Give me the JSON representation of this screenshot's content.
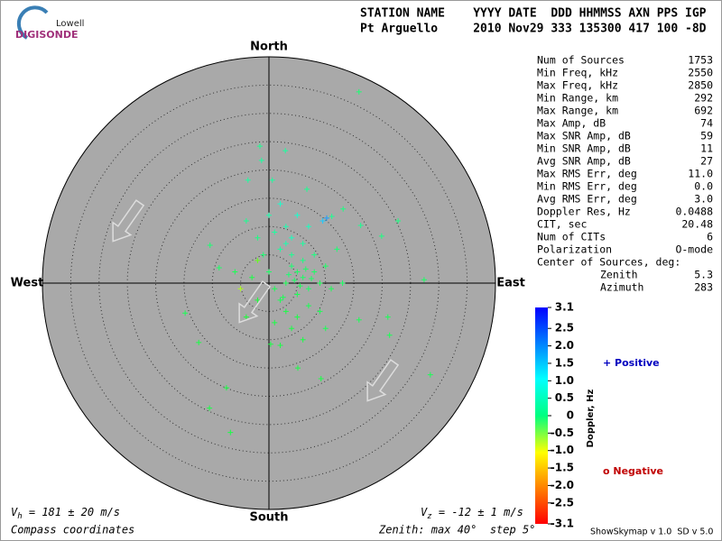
{
  "logo": {
    "top": "Lowell",
    "bottom": "DIGISONDE"
  },
  "header": {
    "line1": "STATION NAME    YYYY DATE  DDD HHMMSS AXN PPS IGP",
    "line2": "Pt Arguello     2010 Nov29 333 135300 417 100 -8D"
  },
  "chart_data": {
    "type": "skymap",
    "compass": {
      "north": "North",
      "south": "South",
      "west": "West",
      "east": "East"
    },
    "zenith_max": 40,
    "zenith_step": 5,
    "points": {
      "east": [
        5,
        4,
        6,
        3,
        7,
        5,
        4,
        3,
        4,
        2,
        6,
        8,
        9,
        2,
        3,
        5,
        7,
        1,
        0,
        -1,
        1,
        3,
        6,
        8,
        10,
        11,
        9,
        4,
        1,
        -2,
        -3,
        -2,
        0,
        5,
        2,
        -4,
        7,
        12,
        13,
        10,
        6,
        2,
        -4,
        -6,
        -5,
        -2,
        4.5,
        5.5,
        3.5,
        6.5,
        2.5,
        7.5,
        15.9,
        -1.6,
        2.9,
        -1.3,
        13.1,
        27.4,
        28.5,
        -6.8,
        -10.5,
        21.3,
        -12.4,
        -7.5,
        15.9,
        -14.8,
        -8.8,
        -10.4,
        19.9,
        16.2,
        22.8,
        21,
        5.1,
        9.2,
        0.3,
        -3.7,
        0.6,
        6.7,
        11.1,
        10.2,
        9.5
      ],
      "north": [
        2,
        3,
        1,
        0,
        -1,
        -2,
        5,
        7,
        8,
        6,
        4,
        2,
        0,
        -3,
        -5,
        -6,
        -4,
        -1,
        2,
        5,
        9,
        10,
        7,
        5,
        3,
        -1,
        -5,
        -8,
        -7,
        -3,
        1,
        8,
        12,
        12,
        14,
        11,
        10,
        6,
        0,
        -8,
        -10,
        -11,
        -6,
        2,
        -1,
        4,
        0.5,
        -0.5,
        1.5,
        2.5,
        -2.5,
        0.8,
        33.8,
        24.2,
        23.4,
        21.7,
        13.1,
        0.6,
        -16.2,
        -26.4,
        -22.1,
        -9.2,
        -10.5,
        -18.5,
        -6.5,
        -5.3,
        2.7,
        6.7,
        8.3,
        10.2,
        11,
        -6,
        -15,
        -16.9,
        -10.8,
        18.2,
        18.2,
        16.6,
        11.8,
        11.5,
        11
      ],
      "doppler": [
        0.5,
        0.6,
        0.5,
        0.4,
        0.5,
        0.4,
        0.8,
        1.0,
        1.1,
        0.9,
        0.7,
        0.5,
        0.4,
        0.4,
        0.3,
        0.3,
        0.4,
        0.4,
        0.5,
        0.6,
        0.9,
        1.0,
        0.9,
        0.7,
        0.5,
        0.4,
        0.4,
        0.3,
        0.3,
        0.2,
        0.3,
        0.7,
        1.0,
        1.2,
        1.2,
        0.8,
        1.1,
        0.6,
        0.5,
        0.4,
        0.3,
        0.3,
        0.2,
        0.4,
        -1.0,
        -0.5,
        0.5,
        0.4,
        0.6,
        0.5,
        0.4,
        0.5,
        0.6,
        0.8,
        0.9,
        0.9,
        0.7,
        0.5,
        0.4,
        0.3,
        0.3,
        0.4,
        0.3,
        0.3,
        0.4,
        0.4,
        0.5,
        0.6,
        0.7,
        0.8,
        0.7,
        0.4,
        0.3,
        0.3,
        0.3,
        0.9,
        0.9,
        0.8,
        0.8,
        2.2,
        1.9
      ]
    },
    "colorbar": {
      "label": "Doppler, Hz",
      "lim": [
        -3.1,
        3.1
      ],
      "ticks": [
        3.1,
        2.5,
        {
          "value": 2,
          "label": "2.0"
        },
        1.5,
        {
          "value": 1,
          "label": "1.0"
        },
        0.5,
        0,
        -0.5,
        {
          "value": -1,
          "label": "-1.0"
        },
        -1.5,
        {
          "value": -2,
          "label": "-2.0"
        },
        -2.5,
        -3.1
      ]
    },
    "legend": {
      "positive": "+ Positive",
      "negative": "o Negative"
    }
  },
  "stats": [
    [
      "Num of Sources",
      "1753"
    ],
    [
      "Min Freq, kHz",
      "2550"
    ],
    [
      "Max Freq, kHz",
      "2850"
    ],
    [
      "Min Range, km",
      "292"
    ],
    [
      "Max Range, km",
      "692"
    ],
    [
      "Max Amp, dB",
      "74"
    ],
    [
      "Max SNR Amp, dB",
      "59"
    ],
    [
      "Min SNR Amp, dB",
      "11"
    ],
    [
      "Avg SNR Amp, dB",
      "27"
    ],
    [
      "Max RMS Err, deg",
      "11.0"
    ],
    [
      "Min RMS Err, deg",
      "0.0"
    ],
    [
      "Avg RMS Err, deg",
      "3.0"
    ],
    [
      "Doppler Res, Hz",
      "0.0488"
    ],
    [
      "CIT, sec",
      "20.48"
    ],
    [
      "Num of CITs",
      "6"
    ],
    [
      "Polarization",
      "O-mode"
    ]
  ],
  "center_title": "Center of Sources, deg:",
  "center": [
    [
      "Zenith",
      "5.3"
    ],
    [
      "Azimuth",
      "283"
    ]
  ],
  "footer": {
    "vh": {
      "symbol": "V",
      "sub": "h",
      "text": " = 181 ± 20 m/s"
    },
    "vz": {
      "symbol": "V",
      "sub": "z",
      "text": " = -12 ± 1 m/s"
    },
    "coords": "Compass coordinates",
    "zenith": "Zenith: max 40°  step 5°",
    "version": "ShowSkymap v 1.0  SD v 5.0"
  }
}
